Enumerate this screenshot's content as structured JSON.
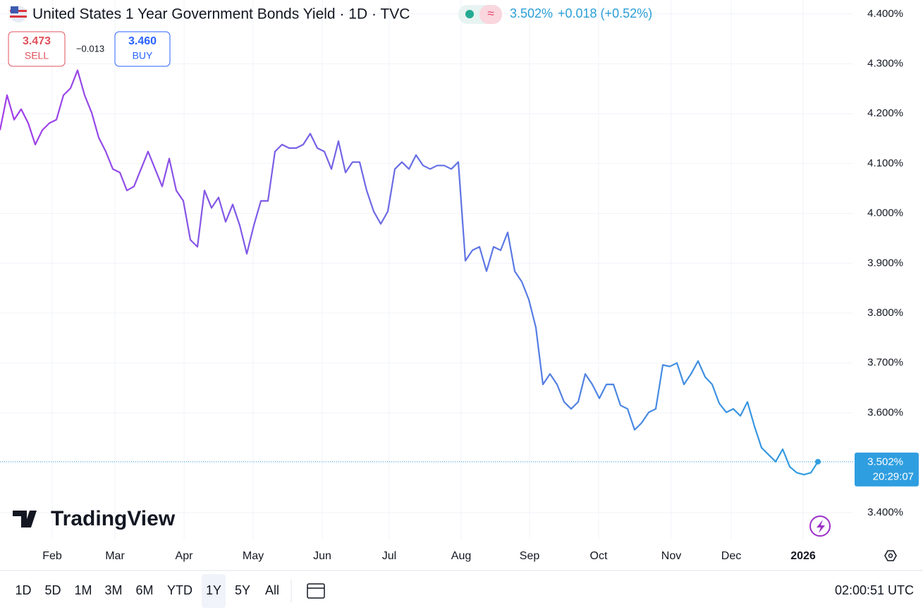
{
  "header": {
    "title": "United States 1 Year Government Bonds Yield · 1D · TVC",
    "price": "3.502%",
    "change": "+0.018 (+0.52%)"
  },
  "trade": {
    "sell_price": "3.473",
    "sell_label": "SELL",
    "spread": "−0.013",
    "buy_price": "3.460",
    "buy_label": "BUY"
  },
  "chart_data": {
    "type": "line",
    "values": [
      4.167,
      4.237,
      4.188,
      4.209,
      4.181,
      4.138,
      4.167,
      4.181,
      4.188,
      4.237,
      4.251,
      4.287,
      4.237,
      4.202,
      4.152,
      4.124,
      4.089,
      4.082,
      4.046,
      4.054,
      4.089,
      4.124,
      4.089,
      4.054,
      4.11,
      4.046,
      4.025,
      3.947,
      3.933,
      4.046,
      4.011,
      4.032,
      3.983,
      4.018,
      3.976,
      3.919,
      3.976,
      4.025,
      4.025,
      4.124,
      4.138,
      4.131,
      4.131,
      4.138,
      4.16,
      4.131,
      4.124,
      4.089,
      4.145,
      4.082,
      4.103,
      4.103,
      4.046,
      4.004,
      3.979,
      4.004,
      4.089,
      4.103,
      4.089,
      4.117,
      4.096,
      4.089,
      4.096,
      4.096,
      4.089,
      4.103,
      3.905,
      3.926,
      3.933,
      3.884,
      3.933,
      3.926,
      3.962,
      3.884,
      3.863,
      3.827,
      3.771,
      3.657,
      3.678,
      3.657,
      3.622,
      3.608,
      3.622,
      3.678,
      3.657,
      3.629,
      3.657,
      3.657,
      3.615,
      3.608,
      3.566,
      3.58,
      3.601,
      3.608,
      3.696,
      3.693,
      3.7,
      3.657,
      3.678,
      3.704,
      3.672,
      3.657,
      3.619,
      3.601,
      3.608,
      3.594,
      3.622,
      3.573,
      3.53,
      3.516,
      3.502,
      3.527,
      3.492,
      3.48,
      3.476,
      3.48,
      3.502
    ],
    "gradient": [
      "#a23de8",
      "#2f9ee0"
    ],
    "xlim": [
      0,
      121
    ],
    "xticks": [
      {
        "value": 7.4,
        "label": "Feb"
      },
      {
        "value": 16.3,
        "label": "Mar"
      },
      {
        "value": 26.1,
        "label": "Apr"
      },
      {
        "value": 35.9,
        "label": "May"
      },
      {
        "value": 45.7,
        "label": "Jun"
      },
      {
        "value": 55.2,
        "label": "Jul"
      },
      {
        "value": 65.4,
        "label": "Aug"
      },
      {
        "value": 75.1,
        "label": "Sep"
      },
      {
        "value": 84.9,
        "label": "Oct"
      },
      {
        "value": 95.2,
        "label": "Nov"
      },
      {
        "value": 103.7,
        "label": "Dec"
      },
      {
        "value": 113.9,
        "label": "2026"
      }
    ],
    "ylim": [
      3.346,
      4.428
    ],
    "yticks": [
      {
        "value": 3.4,
        "label": "3.400%"
      },
      {
        "value": 3.5,
        "label": "3.500%"
      },
      {
        "value": 3.6,
        "label": "3.600%"
      },
      {
        "value": 3.7,
        "label": "3.700%"
      },
      {
        "value": 3.8,
        "label": "3.800%"
      },
      {
        "value": 3.9,
        "label": "3.900%"
      },
      {
        "value": 4.0,
        "label": "4.000%"
      },
      {
        "value": 4.1,
        "label": "4.100%"
      },
      {
        "value": 4.2,
        "label": "4.200%"
      },
      {
        "value": 4.3,
        "label": "4.300%"
      },
      {
        "value": 4.4,
        "label": "4.400%"
      }
    ],
    "grid": true,
    "last_label": "3.502%",
    "countdown": "20:29:07",
    "watermark": "TradingView"
  },
  "toolbar": {
    "ranges": [
      "1D",
      "5D",
      "1M",
      "3M",
      "6M",
      "YTD",
      "1Y",
      "5Y",
      "All"
    ],
    "active": "1Y",
    "clock": "02:00:51 UTC"
  }
}
